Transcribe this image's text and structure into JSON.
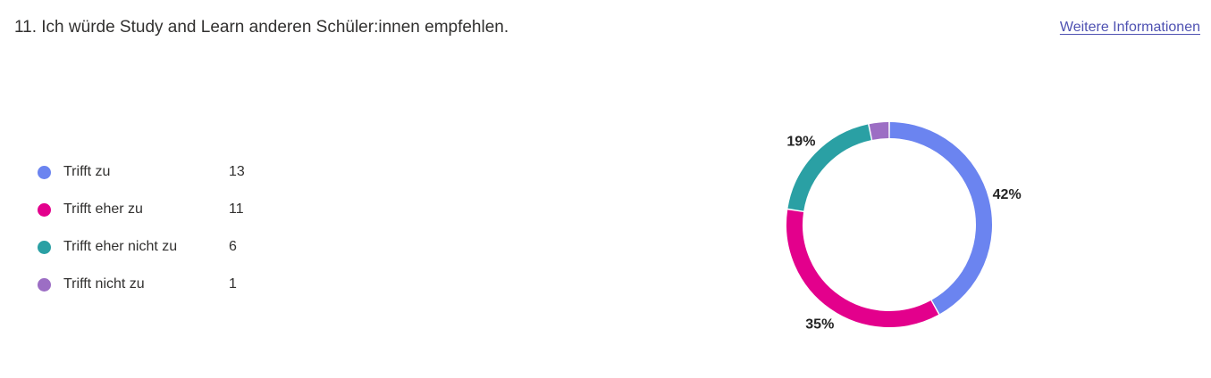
{
  "question": {
    "title": "11. Ich würde Study and Learn anderen Schüler:innen empfehlen.",
    "more_info_label": "Weitere Informationen"
  },
  "legend": {
    "items": [
      {
        "label": "Trifft zu",
        "count": "13",
        "color": "#6b84f0"
      },
      {
        "label": "Trifft eher zu",
        "count": "11",
        "color": "#e3008c"
      },
      {
        "label": "Trifft eher nicht zu",
        "count": "6",
        "color": "#2aa0a4"
      },
      {
        "label": "Trifft nicht zu",
        "count": "1",
        "color": "#9c6ec4"
      }
    ]
  },
  "chart_data": {
    "type": "pie",
    "categories": [
      "Trifft zu",
      "Trifft eher zu",
      "Trifft eher nicht zu",
      "Trifft nicht zu"
    ],
    "values": [
      13,
      11,
      6,
      1
    ],
    "colors": [
      "#6b84f0",
      "#e3008c",
      "#2aa0a4",
      "#9c6ec4"
    ],
    "data_labels": [
      "42%",
      "35%",
      "19%",
      ""
    ],
    "donut": true
  }
}
